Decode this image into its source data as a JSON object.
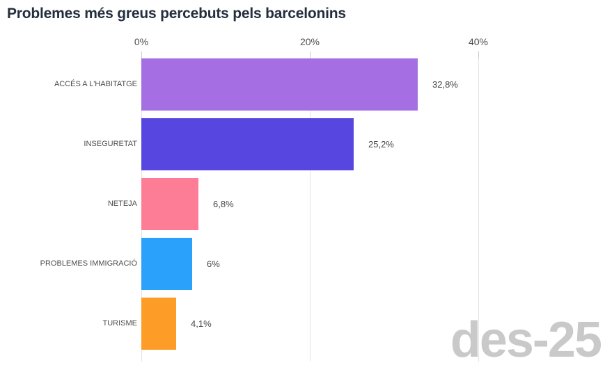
{
  "title": "Problemes més greus percebuts pels barcelonins",
  "watermark": "des-25",
  "chart_data": {
    "type": "bar",
    "orientation": "horizontal",
    "title": "Problemes més greus percebuts pels barcelonins",
    "categories": [
      "ACCÉS A L'HABITATGE",
      "INSEGURETAT",
      "NETEJA",
      "PROBLEMES IMMIGRACIÓ",
      "TURISME"
    ],
    "values": [
      32.8,
      25.2,
      6.8,
      6,
      4.1
    ],
    "value_labels": [
      "32,8%",
      "25,2%",
      "6,8%",
      "6%",
      "4,1%"
    ],
    "bar_colors": [
      "#a56ee3",
      "#5747e0",
      "#fe7d96",
      "#2aa1fb",
      "#fd9d27"
    ],
    "xlabel": "",
    "ylabel": "",
    "xlim": [
      0,
      40
    ],
    "x_ticks": [
      0,
      20,
      40
    ],
    "x_tick_labels": [
      "0%",
      "20%",
      "40%"
    ],
    "grid": "vertical-x-only",
    "legend": "none",
    "annotations": [
      "des-25"
    ]
  },
  "colors": {
    "title": "#242f3e",
    "tick_label": "#4d4d4d",
    "category_label": "#4c4c4c",
    "value_label": "#474747",
    "gridline": "#e3e3e3",
    "tick_mark": "#c9c9c9",
    "watermark": "#c9c9c9",
    "background": "#ffffff"
  }
}
